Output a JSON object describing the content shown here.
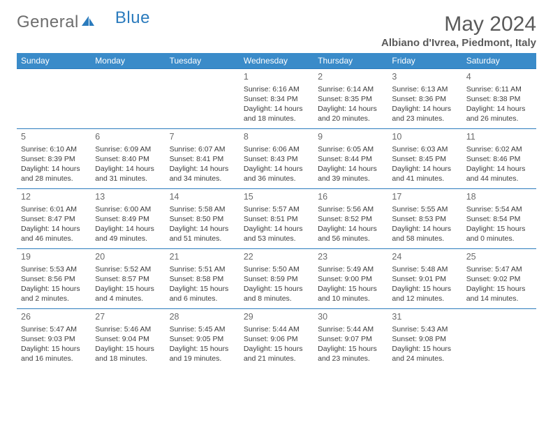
{
  "logo": {
    "gray": "General",
    "blue": "Blue"
  },
  "title": "May 2024",
  "location": "Albiano d'Ivrea, Piedmont, Italy",
  "weekdays": [
    "Sunday",
    "Monday",
    "Tuesday",
    "Wednesday",
    "Thursday",
    "Friday",
    "Saturday"
  ],
  "colors": {
    "header_bg": "#3a8bc9",
    "header_text": "#ffffff",
    "rule": "#2b7bbd",
    "body_text": "#3c3c3c",
    "muted_text": "#6a6a6a",
    "logo_gray": "#6d6d6d",
    "logo_blue": "#2b7bbd"
  },
  "typography": {
    "title_fontsize": 30,
    "location_fontsize": 15,
    "weekday_fontsize": 12,
    "daynum_fontsize": 12.5,
    "cell_fontsize": 10.5
  },
  "weeks": [
    [
      null,
      null,
      null,
      {
        "n": "1",
        "sr": "6:16 AM",
        "ss": "8:34 PM",
        "dl": "14 hours and 18 minutes."
      },
      {
        "n": "2",
        "sr": "6:14 AM",
        "ss": "8:35 PM",
        "dl": "14 hours and 20 minutes."
      },
      {
        "n": "3",
        "sr": "6:13 AM",
        "ss": "8:36 PM",
        "dl": "14 hours and 23 minutes."
      },
      {
        "n": "4",
        "sr": "6:11 AM",
        "ss": "8:38 PM",
        "dl": "14 hours and 26 minutes."
      }
    ],
    [
      {
        "n": "5",
        "sr": "6:10 AM",
        "ss": "8:39 PM",
        "dl": "14 hours and 28 minutes."
      },
      {
        "n": "6",
        "sr": "6:09 AM",
        "ss": "8:40 PM",
        "dl": "14 hours and 31 minutes."
      },
      {
        "n": "7",
        "sr": "6:07 AM",
        "ss": "8:41 PM",
        "dl": "14 hours and 34 minutes."
      },
      {
        "n": "8",
        "sr": "6:06 AM",
        "ss": "8:43 PM",
        "dl": "14 hours and 36 minutes."
      },
      {
        "n": "9",
        "sr": "6:05 AM",
        "ss": "8:44 PM",
        "dl": "14 hours and 39 minutes."
      },
      {
        "n": "10",
        "sr": "6:03 AM",
        "ss": "8:45 PM",
        "dl": "14 hours and 41 minutes."
      },
      {
        "n": "11",
        "sr": "6:02 AM",
        "ss": "8:46 PM",
        "dl": "14 hours and 44 minutes."
      }
    ],
    [
      {
        "n": "12",
        "sr": "6:01 AM",
        "ss": "8:47 PM",
        "dl": "14 hours and 46 minutes."
      },
      {
        "n": "13",
        "sr": "6:00 AM",
        "ss": "8:49 PM",
        "dl": "14 hours and 49 minutes."
      },
      {
        "n": "14",
        "sr": "5:58 AM",
        "ss": "8:50 PM",
        "dl": "14 hours and 51 minutes."
      },
      {
        "n": "15",
        "sr": "5:57 AM",
        "ss": "8:51 PM",
        "dl": "14 hours and 53 minutes."
      },
      {
        "n": "16",
        "sr": "5:56 AM",
        "ss": "8:52 PM",
        "dl": "14 hours and 56 minutes."
      },
      {
        "n": "17",
        "sr": "5:55 AM",
        "ss": "8:53 PM",
        "dl": "14 hours and 58 minutes."
      },
      {
        "n": "18",
        "sr": "5:54 AM",
        "ss": "8:54 PM",
        "dl": "15 hours and 0 minutes."
      }
    ],
    [
      {
        "n": "19",
        "sr": "5:53 AM",
        "ss": "8:56 PM",
        "dl": "15 hours and 2 minutes."
      },
      {
        "n": "20",
        "sr": "5:52 AM",
        "ss": "8:57 PM",
        "dl": "15 hours and 4 minutes."
      },
      {
        "n": "21",
        "sr": "5:51 AM",
        "ss": "8:58 PM",
        "dl": "15 hours and 6 minutes."
      },
      {
        "n": "22",
        "sr": "5:50 AM",
        "ss": "8:59 PM",
        "dl": "15 hours and 8 minutes."
      },
      {
        "n": "23",
        "sr": "5:49 AM",
        "ss": "9:00 PM",
        "dl": "15 hours and 10 minutes."
      },
      {
        "n": "24",
        "sr": "5:48 AM",
        "ss": "9:01 PM",
        "dl": "15 hours and 12 minutes."
      },
      {
        "n": "25",
        "sr": "5:47 AM",
        "ss": "9:02 PM",
        "dl": "15 hours and 14 minutes."
      }
    ],
    [
      {
        "n": "26",
        "sr": "5:47 AM",
        "ss": "9:03 PM",
        "dl": "15 hours and 16 minutes."
      },
      {
        "n": "27",
        "sr": "5:46 AM",
        "ss": "9:04 PM",
        "dl": "15 hours and 18 minutes."
      },
      {
        "n": "28",
        "sr": "5:45 AM",
        "ss": "9:05 PM",
        "dl": "15 hours and 19 minutes."
      },
      {
        "n": "29",
        "sr": "5:44 AM",
        "ss": "9:06 PM",
        "dl": "15 hours and 21 minutes."
      },
      {
        "n": "30",
        "sr": "5:44 AM",
        "ss": "9:07 PM",
        "dl": "15 hours and 23 minutes."
      },
      {
        "n": "31",
        "sr": "5:43 AM",
        "ss": "9:08 PM",
        "dl": "15 hours and 24 minutes."
      },
      null
    ]
  ]
}
